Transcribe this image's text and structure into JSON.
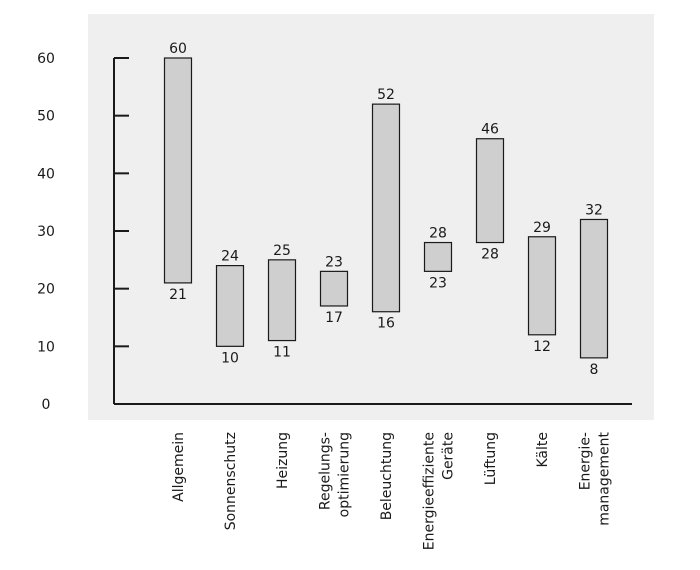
{
  "chart_data": {
    "type": "bar",
    "subtype": "floating-range",
    "title": "",
    "xlabel": "",
    "ylabel": "",
    "ylim": [
      0,
      60
    ],
    "yticks": [
      0,
      10,
      20,
      30,
      40,
      50,
      60
    ],
    "grid": false,
    "background_color": "#efefef",
    "bar_color": "#cfcfcf",
    "categories": [
      [
        "Allgemein"
      ],
      [
        "Sonnenschutz"
      ],
      [
        "Heizung"
      ],
      [
        "Regelungs-",
        "optimierung"
      ],
      [
        "Beleuchtung"
      ],
      [
        "Energieeffiziente",
        "Geräte"
      ],
      [
        "Lüftung"
      ],
      [
        "Kälte"
      ],
      [
        "Energie-",
        "management"
      ]
    ],
    "low": [
      21,
      10,
      11,
      17,
      16,
      23,
      28,
      12,
      8
    ],
    "high": [
      60,
      24,
      25,
      23,
      52,
      28,
      46,
      29,
      32
    ]
  }
}
